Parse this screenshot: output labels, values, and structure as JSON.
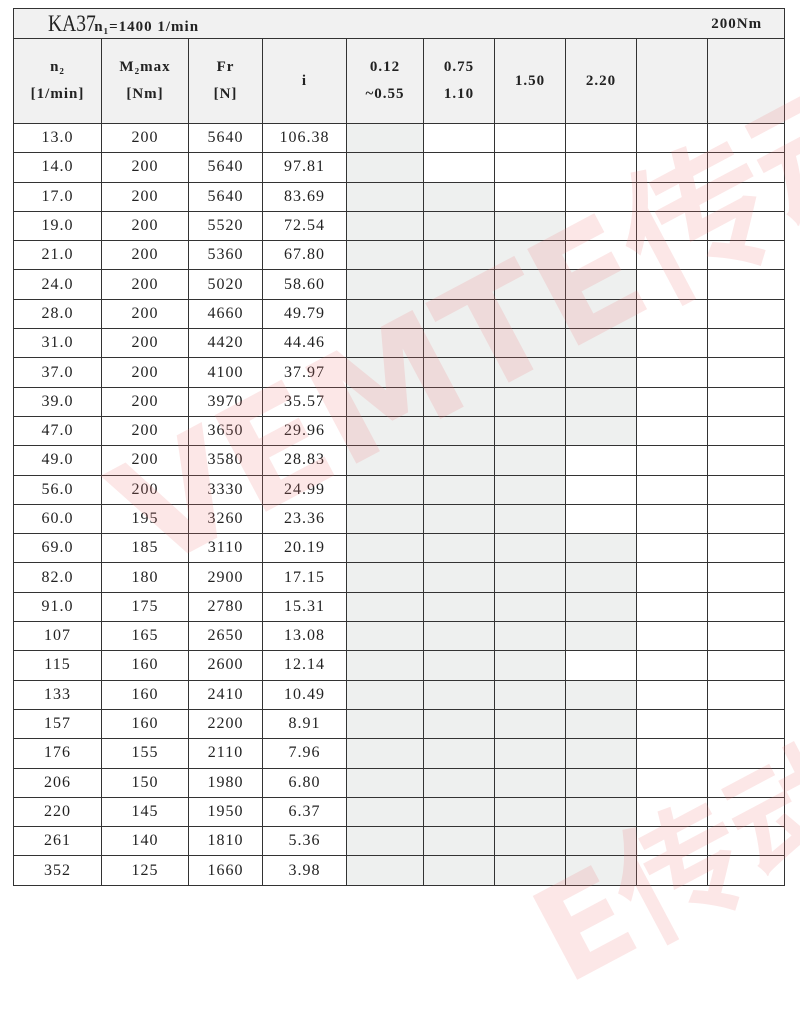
{
  "header": {
    "model": "KA37",
    "input_speed": "n₁=1400 1/min",
    "rated_torque": "200Nm"
  },
  "columns": [
    {
      "line1": "n₂",
      "line2": "[1/min]"
    },
    {
      "line1": "M₂max",
      "line2": "[Nm]"
    },
    {
      "line1": "Fr",
      "line2": "[N]"
    },
    {
      "line1": "i",
      "line2": ""
    },
    {
      "line1": "0.12",
      "line2": "~0.55"
    },
    {
      "line1": "0.75",
      "line2": "1.10"
    },
    {
      "line1": "1.50",
      "line2": ""
    },
    {
      "line1": "2.20",
      "line2": ""
    },
    {
      "line1": "",
      "line2": ""
    },
    {
      "line1": "",
      "line2": ""
    }
  ],
  "shade_color": "#eef0ef",
  "rows": [
    {
      "n2": "13.0",
      "m2": "200",
      "fr": "5640",
      "i": "106.38",
      "shaded": [
        1,
        0,
        0,
        0
      ]
    },
    {
      "n2": "14.0",
      "m2": "200",
      "fr": "5640",
      "i": "97.81",
      "shaded": [
        1,
        0,
        0,
        0
      ]
    },
    {
      "n2": "17.0",
      "m2": "200",
      "fr": "5640",
      "i": "83.69",
      "shaded": [
        1,
        1,
        0,
        0
      ]
    },
    {
      "n2": "19.0",
      "m2": "200",
      "fr": "5520",
      "i": "72.54",
      "shaded": [
        1,
        1,
        1,
        0
      ]
    },
    {
      "n2": "21.0",
      "m2": "200",
      "fr": "5360",
      "i": "67.80",
      "shaded": [
        1,
        1,
        1,
        0
      ]
    },
    {
      "n2": "24.0",
      "m2": "200",
      "fr": "5020",
      "i": "58.60",
      "shaded": [
        1,
        1,
        1,
        1
      ]
    },
    {
      "n2": "28.0",
      "m2": "200",
      "fr": "4660",
      "i": "49.79",
      "shaded": [
        1,
        1,
        1,
        1
      ]
    },
    {
      "n2": "31.0",
      "m2": "200",
      "fr": "4420",
      "i": "44.46",
      "shaded": [
        1,
        1,
        1,
        1
      ]
    },
    {
      "n2": "37.0",
      "m2": "200",
      "fr": "4100",
      "i": "37.97",
      "shaded": [
        1,
        1,
        1,
        1
      ]
    },
    {
      "n2": "39.0",
      "m2": "200",
      "fr": "3970",
      "i": "35.57",
      "shaded": [
        1,
        1,
        1,
        1
      ]
    },
    {
      "n2": "47.0",
      "m2": "200",
      "fr": "3650",
      "i": "29.96",
      "shaded": [
        1,
        1,
        1,
        1
      ]
    },
    {
      "n2": "49.0",
      "m2": "200",
      "fr": "3580",
      "i": "28.83",
      "shaded": [
        1,
        1,
        1,
        0
      ]
    },
    {
      "n2": "56.0",
      "m2": "200",
      "fr": "3330",
      "i": "24.99",
      "shaded": [
        1,
        1,
        1,
        0
      ]
    },
    {
      "n2": "60.0",
      "m2": "195",
      "fr": "3260",
      "i": "23.36",
      "shaded": [
        1,
        1,
        1,
        0
      ]
    },
    {
      "n2": "69.0",
      "m2": "185",
      "fr": "3110",
      "i": "20.19",
      "shaded": [
        1,
        1,
        1,
        1
      ]
    },
    {
      "n2": "82.0",
      "m2": "180",
      "fr": "2900",
      "i": "17.15",
      "shaded": [
        1,
        1,
        1,
        1
      ]
    },
    {
      "n2": "91.0",
      "m2": "175",
      "fr": "2780",
      "i": "15.31",
      "shaded": [
        1,
        1,
        1,
        1
      ]
    },
    {
      "n2": "107",
      "m2": "165",
      "fr": "2650",
      "i": "13.08",
      "shaded": [
        1,
        1,
        1,
        1
      ]
    },
    {
      "n2": "115",
      "m2": "160",
      "fr": "2600",
      "i": "12.14",
      "shaded": [
        1,
        1,
        1,
        0
      ]
    },
    {
      "n2": "133",
      "m2": "160",
      "fr": "2410",
      "i": "10.49",
      "shaded": [
        1,
        1,
        1,
        1
      ]
    },
    {
      "n2": "157",
      "m2": "160",
      "fr": "2200",
      "i": "8.91",
      "shaded": [
        1,
        1,
        1,
        1
      ]
    },
    {
      "n2": "176",
      "m2": "155",
      "fr": "2110",
      "i": "7.96",
      "shaded": [
        1,
        1,
        1,
        1
      ]
    },
    {
      "n2": "206",
      "m2": "150",
      "fr": "1980",
      "i": "6.80",
      "shaded": [
        1,
        1,
        1,
        1
      ]
    },
    {
      "n2": "220",
      "m2": "145",
      "fr": "1950",
      "i": "6.37",
      "shaded": [
        1,
        1,
        1,
        1
      ]
    },
    {
      "n2": "261",
      "m2": "140",
      "fr": "1810",
      "i": "5.36",
      "shaded": [
        1,
        1,
        1,
        1
      ]
    },
    {
      "n2": "352",
      "m2": "125",
      "fr": "1660",
      "i": "3.98",
      "shaded": [
        1,
        1,
        1,
        1
      ]
    }
  ],
  "watermark": "VEMTE传动"
}
